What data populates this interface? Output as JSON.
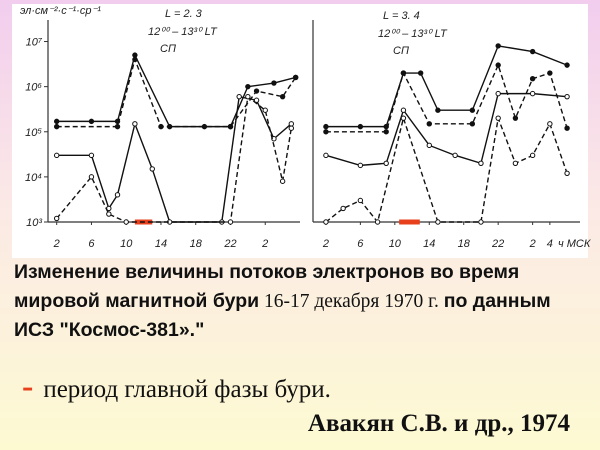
{
  "chart_data": [
    {
      "type": "line",
      "y_label": "эл·см⁻²·с⁻¹·ср⁻¹",
      "log_y": true,
      "annotations": [
        "L = 2. 3",
        "12⁰⁰ – 13³⁰ LT",
        "СП"
      ],
      "xlim": [
        1,
        30
      ],
      "xticks": [
        2,
        6,
        10,
        14,
        18,
        22,
        {
          "value": 26,
          "label": "2"
        }
      ],
      "ylim": [
        1000,
        30000000
      ],
      "yticks": [
        {
          "value": 1000,
          "label": "10³"
        },
        {
          "value": 10000,
          "label": "10⁴"
        },
        {
          "value": 100000,
          "label": "10⁵"
        },
        {
          "value": 1000000,
          "label": "10⁶"
        },
        {
          "value": 10000000,
          "label": "10⁷"
        }
      ],
      "main_phase": [
        11,
        13
      ],
      "main_phase_color": "#e8401c",
      "series": [
        {
          "color": "#111",
          "dashed": false,
          "marker": "filled",
          "x": [
            2,
            6,
            9,
            11,
            15,
            19,
            22,
            24,
            27,
            29.5
          ],
          "values": [
            170000,
            170000,
            170000,
            5000000,
            130000,
            130000,
            130000,
            1000000,
            1200000,
            1600000
          ]
        },
        {
          "color": "#111",
          "dashed": true,
          "marker": "filled",
          "x": [
            2,
            9,
            11,
            14,
            22,
            25,
            28,
            29.5
          ],
          "values": [
            130000,
            130000,
            4000000,
            130000,
            130000,
            800000,
            600000,
            1600000
          ]
        },
        {
          "color": "#111",
          "dashed": false,
          "marker": "open",
          "x": [
            2,
            6,
            8,
            9,
            11,
            13,
            15,
            21,
            23,
            25,
            27,
            29
          ],
          "values": [
            30000,
            30000,
            2000,
            4000,
            150000,
            15000,
            1000,
            1000,
            600000,
            500000,
            70000,
            150000
          ]
        },
        {
          "color": "#111",
          "dashed": true,
          "marker": "open",
          "x": [
            2,
            6,
            8,
            10,
            22,
            24,
            26,
            28,
            29
          ],
          "values": [
            1200,
            10000,
            1500,
            1000,
            1000,
            600000,
            300000,
            8000,
            120000
          ]
        }
      ]
    },
    {
      "type": "line",
      "log_y": true,
      "x_label": "ч МСК",
      "annotations": [
        "L = 3. 4",
        "12⁰⁰ – 13³⁰ LT",
        "СП"
      ],
      "xlim": [
        0.5,
        31.5
      ],
      "xticks": [
        2,
        6,
        10,
        14,
        18,
        22,
        {
          "value": 26,
          "label": "2"
        },
        {
          "value": 28,
          "label": "4"
        }
      ],
      "ylim": [
        1000,
        30000000
      ],
      "main_phase": [
        10.5,
        12.9
      ],
      "main_phase_color": "#e8401c",
      "series": [
        {
          "color": "#111",
          "dashed": false,
          "marker": "filled",
          "x": [
            2,
            6,
            9,
            11,
            13,
            15,
            19,
            22,
            26,
            30
          ],
          "values": [
            130000,
            130000,
            130000,
            2000000,
            2000000,
            300000,
            300000,
            8000000,
            6000000,
            3000000
          ]
        },
        {
          "color": "#111",
          "dashed": true,
          "marker": "filled",
          "x": [
            2,
            9,
            11,
            14,
            19,
            22,
            24,
            26,
            28,
            30
          ],
          "values": [
            100000,
            100000,
            2000000,
            150000,
            150000,
            3000000,
            200000,
            1500000,
            2000000,
            120000
          ]
        },
        {
          "color": "#111",
          "dashed": false,
          "marker": "open",
          "x": [
            2,
            6,
            9,
            11,
            14,
            17,
            20,
            22,
            26,
            30
          ],
          "values": [
            30000,
            18000,
            20000,
            300000,
            50000,
            30000,
            20000,
            700000,
            700000,
            600000
          ]
        },
        {
          "color": "#111",
          "dashed": true,
          "marker": "open",
          "x": [
            2,
            4,
            6,
            8,
            11,
            15,
            20,
            22,
            24,
            26,
            28,
            30
          ],
          "values": [
            1000,
            2000,
            3000,
            1000,
            200000,
            1000,
            1000,
            200000,
            20000,
            30000,
            150000,
            12000
          ]
        }
      ]
    }
  ],
  "caption": {
    "bold1": "Изменение величины потоков электронов во время мировой магнитной бури",
    "normal": "16-17 декабря 1970 г.",
    "bold2": "по данным ИСЗ \"Космос-381».\""
  },
  "legend": {
    "symbol": "-",
    "text": "период главной фазы бури."
  },
  "source": "Авакян С.В. и др., 1974"
}
